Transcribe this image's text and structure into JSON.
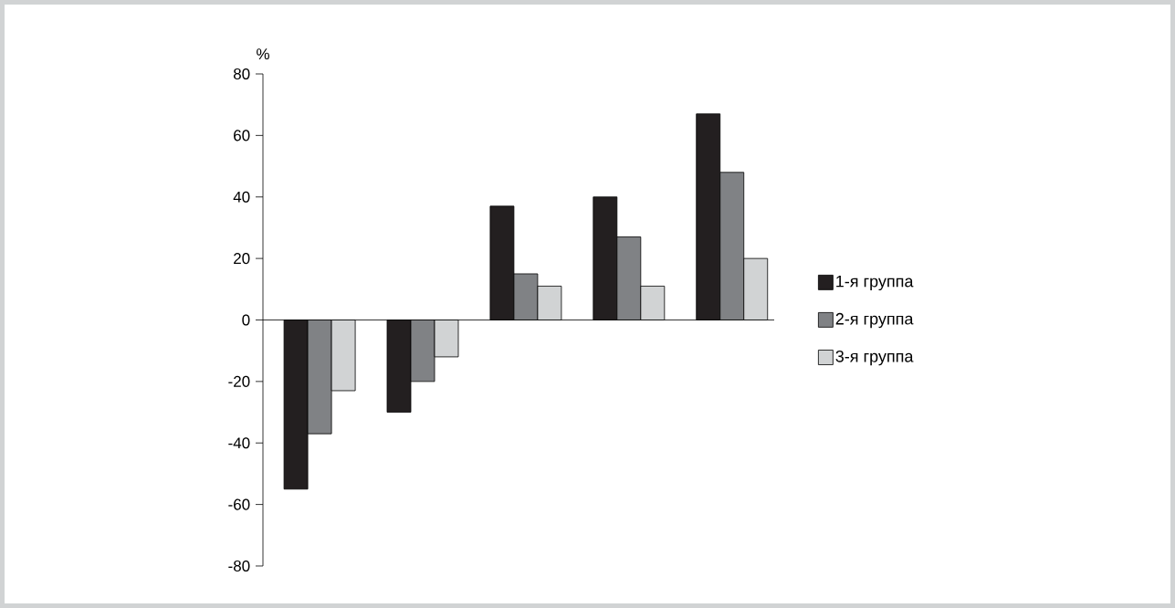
{
  "chart_data": {
    "type": "bar",
    "ylabel": "%",
    "categories": [
      null,
      null,
      null,
      null,
      null
    ],
    "series": [
      {
        "name": "1-я группа",
        "color": "#231f20",
        "values": [
          -55,
          -30,
          37,
          40,
          67
        ]
      },
      {
        "name": "2-я группа",
        "color": "#808285",
        "values": [
          -37,
          -20,
          15,
          27,
          48
        ]
      },
      {
        "name": "3-я группа",
        "color": "#d1d3d4",
        "values": [
          -23,
          -12,
          11,
          11,
          20
        ]
      }
    ],
    "ylim": [
      -80,
      80
    ],
    "yticks": [
      -80,
      -60,
      -40,
      -20,
      0,
      20,
      40,
      60,
      80
    ],
    "legend": "right"
  }
}
